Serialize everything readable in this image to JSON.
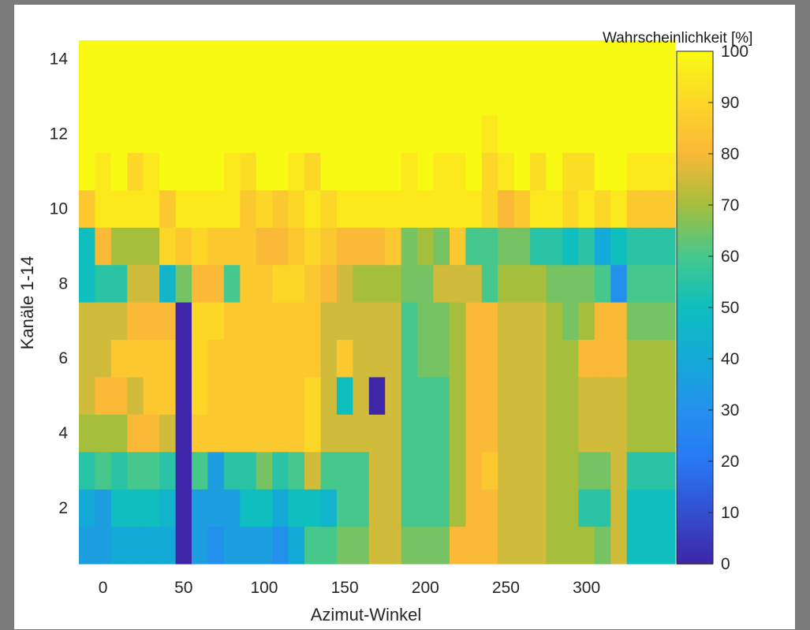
{
  "chart_data": {
    "type": "heatmap",
    "title": "",
    "xlabel": "Azimut-Winkel",
    "ylabel": "Kanäle 1-14",
    "xlim": [
      -15,
      355
    ],
    "ylim": [
      0.5,
      14.5
    ],
    "x_ticks": [
      0,
      50,
      100,
      150,
      200,
      250,
      300
    ],
    "y_ticks": [
      2,
      4,
      6,
      8,
      10,
      12,
      14
    ],
    "colorbar": {
      "label": "Wahrscheinlichkeit [%]",
      "colormap": "parula",
      "range": [
        0,
        100
      ],
      "ticks": [
        0,
        10,
        20,
        30,
        40,
        50,
        60,
        70,
        80,
        90,
        100
      ]
    },
    "x": [
      -10,
      0,
      10,
      20,
      30,
      40,
      50,
      60,
      70,
      80,
      90,
      100,
      110,
      120,
      130,
      140,
      150,
      160,
      170,
      180,
      190,
      200,
      210,
      220,
      230,
      240,
      250,
      260,
      270,
      280,
      290,
      300,
      310,
      320,
      330,
      340,
      350
    ],
    "channels": [
      1,
      2,
      3,
      4,
      5,
      6,
      7,
      8,
      9,
      10,
      11,
      12,
      13,
      14
    ],
    "values": [
      [
        35,
        35,
        40,
        40,
        40,
        40,
        0,
        35,
        30,
        35,
        35,
        35,
        30,
        40,
        60,
        60,
        65,
        65,
        75,
        75,
        65,
        65,
        65,
        80,
        80,
        80,
        75,
        75,
        75,
        70,
        70,
        70,
        65,
        75,
        50,
        50,
        50
      ],
      [
        40,
        35,
        50,
        50,
        50,
        45,
        0,
        35,
        35,
        35,
        50,
        50,
        40,
        50,
        50,
        45,
        60,
        60,
        75,
        75,
        60,
        60,
        60,
        70,
        80,
        80,
        75,
        75,
        75,
        70,
        70,
        55,
        55,
        75,
        50,
        50,
        50
      ],
      [
        55,
        60,
        55,
        60,
        60,
        55,
        0,
        60,
        35,
        55,
        55,
        65,
        55,
        60,
        75,
        60,
        60,
        60,
        75,
        75,
        60,
        60,
        60,
        70,
        80,
        85,
        75,
        75,
        75,
        70,
        70,
        65,
        65,
        75,
        55,
        55,
        55
      ],
      [
        70,
        70,
        70,
        80,
        80,
        75,
        0,
        85,
        85,
        85,
        85,
        85,
        85,
        85,
        90,
        75,
        75,
        75,
        75,
        75,
        60,
        60,
        60,
        70,
        80,
        80,
        75,
        75,
        75,
        70,
        70,
        75,
        75,
        75,
        70,
        70,
        70
      ],
      [
        75,
        80,
        80,
        75,
        85,
        85,
        0,
        90,
        85,
        85,
        85,
        85,
        85,
        85,
        90,
        75,
        50,
        75,
        0,
        75,
        60,
        60,
        60,
        70,
        80,
        80,
        75,
        75,
        75,
        70,
        70,
        75,
        75,
        75,
        70,
        70,
        70
      ],
      [
        75,
        75,
        85,
        85,
        85,
        85,
        0,
        90,
        85,
        85,
        85,
        85,
        85,
        85,
        85,
        75,
        85,
        75,
        75,
        75,
        60,
        65,
        65,
        70,
        80,
        80,
        75,
        75,
        75,
        70,
        70,
        80,
        80,
        80,
        70,
        70,
        70
      ],
      [
        75,
        75,
        75,
        80,
        80,
        80,
        0,
        90,
        90,
        85,
        85,
        85,
        85,
        85,
        85,
        75,
        75,
        75,
        75,
        75,
        60,
        65,
        65,
        70,
        80,
        80,
        75,
        75,
        75,
        70,
        65,
        70,
        80,
        80,
        65,
        65,
        65
      ],
      [
        50,
        55,
        55,
        75,
        75,
        45,
        65,
        80,
        80,
        60,
        85,
        85,
        90,
        90,
        85,
        80,
        75,
        70,
        70,
        70,
        65,
        65,
        75,
        75,
        75,
        60,
        70,
        70,
        70,
        65,
        65,
        65,
        60,
        30,
        60,
        60,
        60
      ],
      [
        50,
        80,
        70,
        70,
        70,
        90,
        85,
        90,
        85,
        85,
        85,
        80,
        80,
        85,
        90,
        85,
        80,
        80,
        80,
        85,
        65,
        70,
        65,
        85,
        60,
        60,
        65,
        65,
        55,
        55,
        50,
        55,
        40,
        50,
        55,
        55,
        55
      ],
      [
        85,
        95,
        95,
        95,
        95,
        85,
        95,
        95,
        95,
        95,
        85,
        90,
        85,
        90,
        95,
        90,
        95,
        95,
        95,
        95,
        95,
        95,
        95,
        95,
        95,
        90,
        80,
        85,
        95,
        95,
        90,
        95,
        90,
        95,
        85,
        85,
        85
      ],
      [
        100,
        95,
        100,
        90,
        95,
        100,
        100,
        100,
        100,
        95,
        92,
        100,
        100,
        95,
        90,
        100,
        100,
        100,
        100,
        100,
        95,
        100,
        95,
        95,
        100,
        90,
        95,
        100,
        92,
        100,
        92,
        92,
        100,
        100,
        95,
        95,
        95
      ],
      [
        100,
        100,
        100,
        100,
        100,
        100,
        100,
        100,
        100,
        100,
        100,
        100,
        100,
        100,
        100,
        100,
        100,
        100,
        100,
        100,
        100,
        100,
        100,
        100,
        100,
        95,
        100,
        100,
        100,
        100,
        100,
        100,
        100,
        100,
        100,
        100,
        100
      ],
      [
        100,
        100,
        100,
        100,
        100,
        100,
        100,
        100,
        100,
        100,
        100,
        100,
        100,
        100,
        100,
        100,
        100,
        100,
        100,
        100,
        100,
        100,
        100,
        100,
        100,
        100,
        100,
        100,
        100,
        100,
        100,
        100,
        100,
        100,
        100,
        100,
        100
      ],
      [
        100,
        100,
        100,
        100,
        100,
        100,
        100,
        100,
        100,
        100,
        100,
        100,
        100,
        100,
        100,
        100,
        100,
        100,
        100,
        100,
        100,
        100,
        100,
        100,
        100,
        100,
        100,
        100,
        100,
        100,
        100,
        100,
        100,
        100,
        100,
        100,
        100
      ]
    ]
  }
}
